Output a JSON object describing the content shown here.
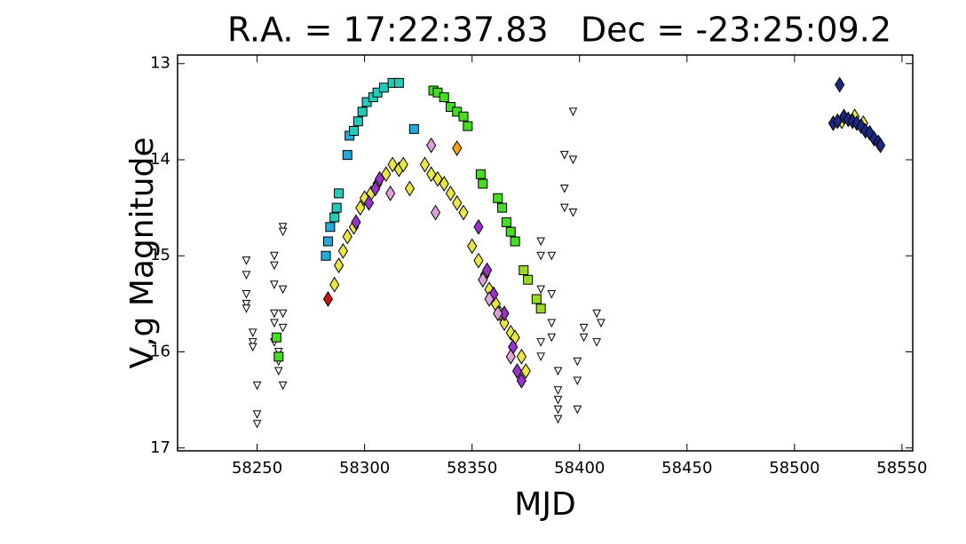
{
  "chart_data": {
    "type": "scatter",
    "title": "R.A. = 17:22:37.83   Dec = -23:25:09.2",
    "x_label": "MJD",
    "y_label": "V,g Magnitude",
    "xlim": [
      58213,
      58555
    ],
    "ylim": [
      17.03,
      12.91
    ],
    "xticks": [
      58250,
      58300,
      58350,
      58400,
      58450,
      58500,
      58550
    ],
    "yticks": [
      13,
      14,
      15,
      16,
      17
    ],
    "series": [
      {
        "marker": "triangle",
        "color": "#ffffff",
        "x": [
          58245,
          58245,
          58245,
          58245,
          58245,
          58248,
          58248,
          58248,
          58250,
          58250,
          58250,
          58258,
          58258,
          58258,
          58258,
          58258,
          58258,
          58260,
          58260,
          58260,
          58262,
          58262,
          58262,
          58262,
          58262,
          58262,
          58382,
          58382,
          58382,
          58382,
          58382,
          58387,
          58387,
          58387,
          58387,
          58390,
          58390,
          58390,
          58390,
          58390,
          58393,
          58393,
          58393,
          58397,
          58397,
          58397,
          58399,
          58399,
          58399,
          58402,
          58402,
          58408,
          58408,
          58410
        ],
        "values": [
          15.05,
          15.2,
          15.4,
          15.5,
          15.55,
          15.8,
          15.9,
          15.95,
          16.35,
          16.65,
          16.75,
          15.0,
          15.1,
          15.3,
          15.6,
          15.7,
          15.9,
          16.0,
          16.1,
          16.2,
          14.7,
          14.75,
          15.35,
          15.6,
          15.75,
          16.35,
          14.85,
          15.0,
          15.35,
          15.9,
          16.05,
          15.0,
          15.4,
          15.7,
          15.85,
          16.2,
          16.4,
          16.5,
          16.6,
          16.7,
          13.95,
          14.3,
          14.5,
          13.5,
          14.0,
          14.55,
          16.1,
          16.3,
          16.6,
          15.75,
          15.85,
          15.6,
          15.9,
          15.7
        ]
      },
      {
        "marker": "square",
        "color": "#22aadd",
        "x": [
          58282,
          58283,
          58284,
          58292,
          58293,
          58323
        ],
        "values": [
          15.0,
          14.85,
          14.7,
          13.95,
          13.75,
          13.68
        ]
      },
      {
        "marker": "square",
        "color": "#22ccbb",
        "x": [
          58286,
          58287,
          58288,
          58295,
          58297,
          58299,
          58301,
          58304,
          58306,
          58309,
          58313,
          58316
        ],
        "values": [
          14.6,
          14.5,
          14.35,
          13.7,
          13.6,
          13.5,
          13.4,
          13.35,
          13.3,
          13.25,
          13.2,
          13.2
        ]
      },
      {
        "marker": "square",
        "color": "#44dd22",
        "x": [
          58259,
          58260,
          58332,
          58334,
          58337,
          58340,
          58343,
          58346,
          58348,
          58354,
          58355,
          58362,
          58364,
          58366,
          58368,
          58370
        ],
        "values": [
          15.85,
          16.05,
          13.28,
          13.3,
          13.35,
          13.45,
          13.5,
          13.55,
          13.65,
          14.15,
          14.25,
          14.4,
          14.5,
          14.65,
          14.75,
          14.85
        ]
      },
      {
        "marker": "square",
        "color": "#99dd22",
        "x": [
          58374,
          58376,
          58380,
          58382
        ],
        "values": [
          15.15,
          15.25,
          15.45,
          15.55
        ]
      },
      {
        "marker": "diamond",
        "color": "#e8e840",
        "x": [
          58286,
          58288,
          58290,
          58292,
          58295,
          58298,
          58300,
          58303,
          58306,
          58310,
          58313,
          58316,
          58318,
          58321,
          58328,
          58331,
          58334,
          58337,
          58340,
          58343,
          58346,
          58350,
          58353,
          58356,
          58358,
          58361,
          58363,
          58365,
          58368,
          58370,
          58373,
          58375,
          58522,
          58528,
          58532
        ],
        "values": [
          15.3,
          15.1,
          14.95,
          14.8,
          14.7,
          14.5,
          14.4,
          14.35,
          14.25,
          14.15,
          14.05,
          14.1,
          14.05,
          14.3,
          14.05,
          14.15,
          14.2,
          14.25,
          14.35,
          14.45,
          14.55,
          14.9,
          15.05,
          15.2,
          15.35,
          15.5,
          15.6,
          15.7,
          15.8,
          15.85,
          16.05,
          16.2,
          13.6,
          13.55,
          13.62
        ]
      },
      {
        "marker": "diamond",
        "color": "#9932cc",
        "x": [
          58296,
          58302,
          58305,
          58307,
          58353,
          58357,
          58360,
          58365,
          58369,
          58371,
          58373
        ],
        "values": [
          14.65,
          14.45,
          14.3,
          14.2,
          14.7,
          15.15,
          15.4,
          15.6,
          15.95,
          16.2,
          16.3
        ]
      },
      {
        "marker": "diamond",
        "color": "#dda0dd",
        "x": [
          58312,
          58331,
          58333,
          58355,
          58358,
          58362,
          58368
        ],
        "values": [
          14.35,
          13.85,
          14.55,
          15.25,
          15.45,
          15.6,
          16.05
        ]
      },
      {
        "marker": "diamond",
        "color": "#cc1111",
        "x": [
          58283
        ],
        "values": [
          15.45
        ]
      },
      {
        "marker": "diamond",
        "color": "#ffa500",
        "x": [
          58343
        ],
        "values": [
          13.88
        ]
      },
      {
        "marker": "diamond",
        "color": "#1a2a80",
        "x": [
          58518,
          58520,
          58521,
          58523,
          58525,
          58527,
          58529,
          58531,
          58533,
          58535,
          58537,
          58539,
          58540
        ],
        "values": [
          13.62,
          13.6,
          13.22,
          13.55,
          13.58,
          13.6,
          13.62,
          13.65,
          13.7,
          13.72,
          13.78,
          13.82,
          13.85
        ]
      }
    ]
  }
}
